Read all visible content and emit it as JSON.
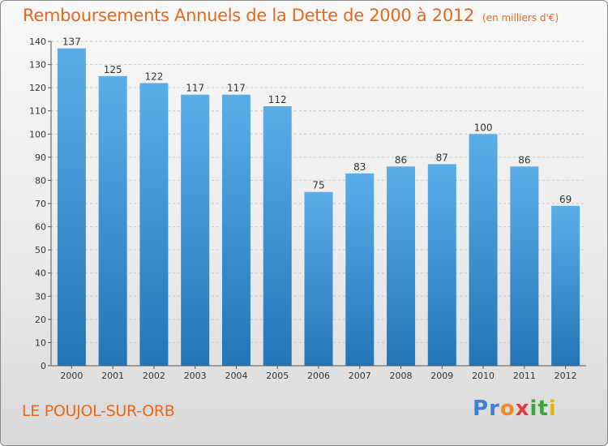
{
  "title": "Remboursements Annuels de la Dette de 2000 à 2012",
  "unit": "(en milliers d'€)",
  "location": "LE POUJOL-SUR-ORB",
  "logo": {
    "text": "Proxiti",
    "letters": [
      "P",
      "r",
      "o",
      "x",
      "i",
      "t",
      "i"
    ],
    "colors": [
      "#3d7fd9",
      "#3d7fd9",
      "#f08a24",
      "#e23b3b",
      "#3aa63a",
      "#3aa63a",
      "#e0b800"
    ]
  },
  "chart_data": {
    "type": "bar",
    "title": "Remboursements Annuels de la Dette de 2000 à 2012",
    "subtitle": "(en milliers d'€)",
    "xlabel": "",
    "ylabel": "",
    "categories": [
      "2000",
      "2001",
      "2002",
      "2003",
      "2004",
      "2005",
      "2006",
      "2007",
      "2008",
      "2009",
      "2010",
      "2011",
      "2012"
    ],
    "values": [
      137,
      125,
      122,
      117,
      117,
      112,
      75,
      83,
      86,
      87,
      100,
      86,
      69
    ],
    "ylim": [
      0,
      140
    ],
    "yticks": [
      0,
      10,
      20,
      30,
      40,
      50,
      60,
      70,
      80,
      90,
      100,
      110,
      120,
      130,
      140
    ],
    "grid": "horizontal-dashed",
    "legend": "none",
    "bar_color_top": "#5aaee8",
    "bar_color_bottom": "#2276b8"
  }
}
